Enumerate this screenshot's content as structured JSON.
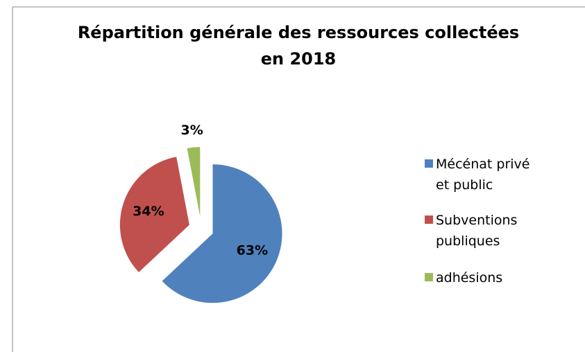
{
  "chart_data": {
    "type": "pie",
    "title": "Répartition générale  des ressources collectées en 2018",
    "categories": [
      "Mécénat privé et public",
      "Subventions publiques",
      "adhésions"
    ],
    "values": [
      63,
      34,
      3
    ],
    "value_labels": [
      "63%",
      "34%",
      "3%"
    ],
    "colors": [
      "#4f81bd",
      "#c0504d",
      "#9bbb59"
    ],
    "legend": "right"
  }
}
